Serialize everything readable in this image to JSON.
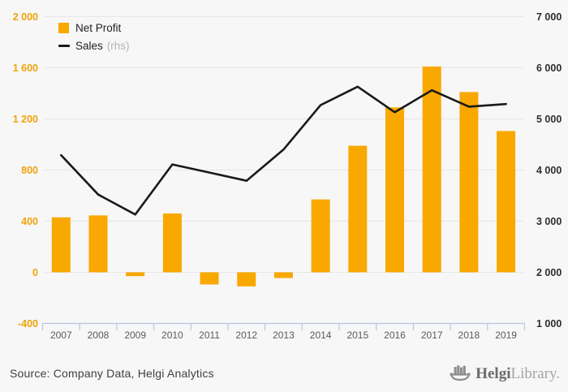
{
  "chart_data": {
    "type": "bar+line",
    "categories": [
      "2007",
      "2008",
      "2009",
      "2010",
      "2011",
      "2012",
      "2013",
      "2014",
      "2015",
      "2016",
      "2017",
      "2018",
      "2019"
    ],
    "series": [
      {
        "name": "Net Profit",
        "type": "bar",
        "axis": "left",
        "color": "#F9A800",
        "values": [
          430,
          445,
          -30,
          460,
          -95,
          -110,
          -45,
          570,
          990,
          1290,
          1610,
          1410,
          1105
        ]
      },
      {
        "name": "Sales",
        "type": "line",
        "axis": "right",
        "color": "#1A1A1A",
        "values": [
          4290,
          3520,
          3130,
          4110,
          3950,
          3790,
          4400,
          5270,
          5630,
          5130,
          5560,
          5240,
          5290
        ]
      }
    ],
    "left_axis": {
      "min": -400,
      "max": 2000,
      "step": 400,
      "labels": [
        "2 000",
        "1 600",
        "1 200",
        "800",
        "400",
        "0",
        "-400"
      ],
      "color": "#F0A30A"
    },
    "right_axis": {
      "min": 1000,
      "max": 7000,
      "step": 1000,
      "labels": [
        "7 000",
        "6 000",
        "5 000",
        "4 000",
        "3 000",
        "2 000",
        "1 000"
      ],
      "color": "#2E2E2E"
    },
    "grid": true,
    "legend_position": "top-left"
  },
  "legend": {
    "items": [
      {
        "label": "Net Profit",
        "swatch": "bar-square"
      },
      {
        "label": "Sales",
        "suffix": "(rhs)",
        "swatch": "line-dash"
      }
    ]
  },
  "footer": {
    "source": "Source: Company Data, Helgi Analytics",
    "logo": {
      "brand_bold": "Helgi",
      "brand_light": "Library.",
      "icon": "viking-ship-icon"
    }
  },
  "colors": {
    "background": "#F7F7F7",
    "gridline": "#E6E6E6",
    "axis_line": "#BAC5E2",
    "bar": "#F9A800",
    "line": "#1A1A1A",
    "year_label": "#5A5A5A",
    "rhs_suffix": "#B3B3B3",
    "logo_gray": "#8F8F8F"
  }
}
